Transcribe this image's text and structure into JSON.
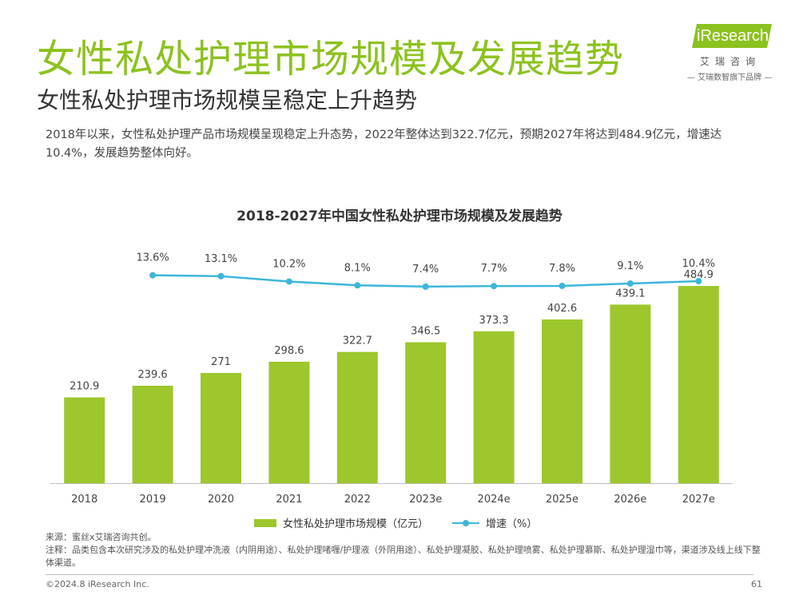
{
  "header": {
    "title": "女性私处护理市场规模及发展趋势",
    "subtitle": "女性私处护理市场规模呈稳定上升趋势",
    "description": "2018年以来，女性私处护理产品市场规模呈现稳定上升态势，2022年整体达到322.7亿元，预期2027年将达到484.9亿元，增速达10.4%，发展趋势整体向好。"
  },
  "logo": {
    "brand": "iResearch",
    "cn": "艾瑞咨询",
    "tagline": "— 艾瑞数智旗下品牌 —"
  },
  "chart_data": {
    "type": "bar",
    "title": "2018-2027年中国女性私处护理市场规模及发展趋势",
    "categories": [
      "2018",
      "2019",
      "2020",
      "2021",
      "2022",
      "2023e",
      "2024e",
      "2025e",
      "2026e",
      "2027e"
    ],
    "series": [
      {
        "name": "女性私处护理市场规模（亿元）",
        "type": "bar",
        "values": [
          210.9,
          239.6,
          271,
          298.6,
          322.7,
          346.5,
          373.3,
          402.6,
          439.1,
          484.9
        ],
        "labels": [
          "210.9",
          "239.6",
          "271",
          "298.6",
          "322.7",
          "346.5",
          "373.3",
          "402.6",
          "439.1",
          "484.9"
        ],
        "color": "#9dc72c"
      },
      {
        "name": "增速（%）",
        "type": "line",
        "values": [
          null,
          13.6,
          13.1,
          10.2,
          8.1,
          7.4,
          7.7,
          7.8,
          9.1,
          10.4
        ],
        "labels": [
          "",
          "13.6%",
          "13.1%",
          "10.2%",
          "8.1%",
          "7.4%",
          "7.7%",
          "7.8%",
          "9.1%",
          "10.4%"
        ],
        "color": "#3cb6d9"
      }
    ],
    "ylim_bar": [
      0,
      540
    ],
    "ylim_line": [
      -100,
      20
    ],
    "xlabel": "",
    "ylabel": "",
    "grid": false,
    "legend_position": "bottom"
  },
  "notes": {
    "source": "来源：蜜丝x艾瑞咨询共创。",
    "annotation": "注释：品类包含本次研究涉及的私处护理冲洗液（内阴用途）、私处护理啫喱/护理液（外阴用途）、私处护理凝胶、私处护理喷雾、私处护理慕斯、私处护理湿巾等，渠道涉及线上线下整体渠道。"
  },
  "footer": {
    "copyright": "©2024.8 iResearch Inc.",
    "page": "61"
  }
}
